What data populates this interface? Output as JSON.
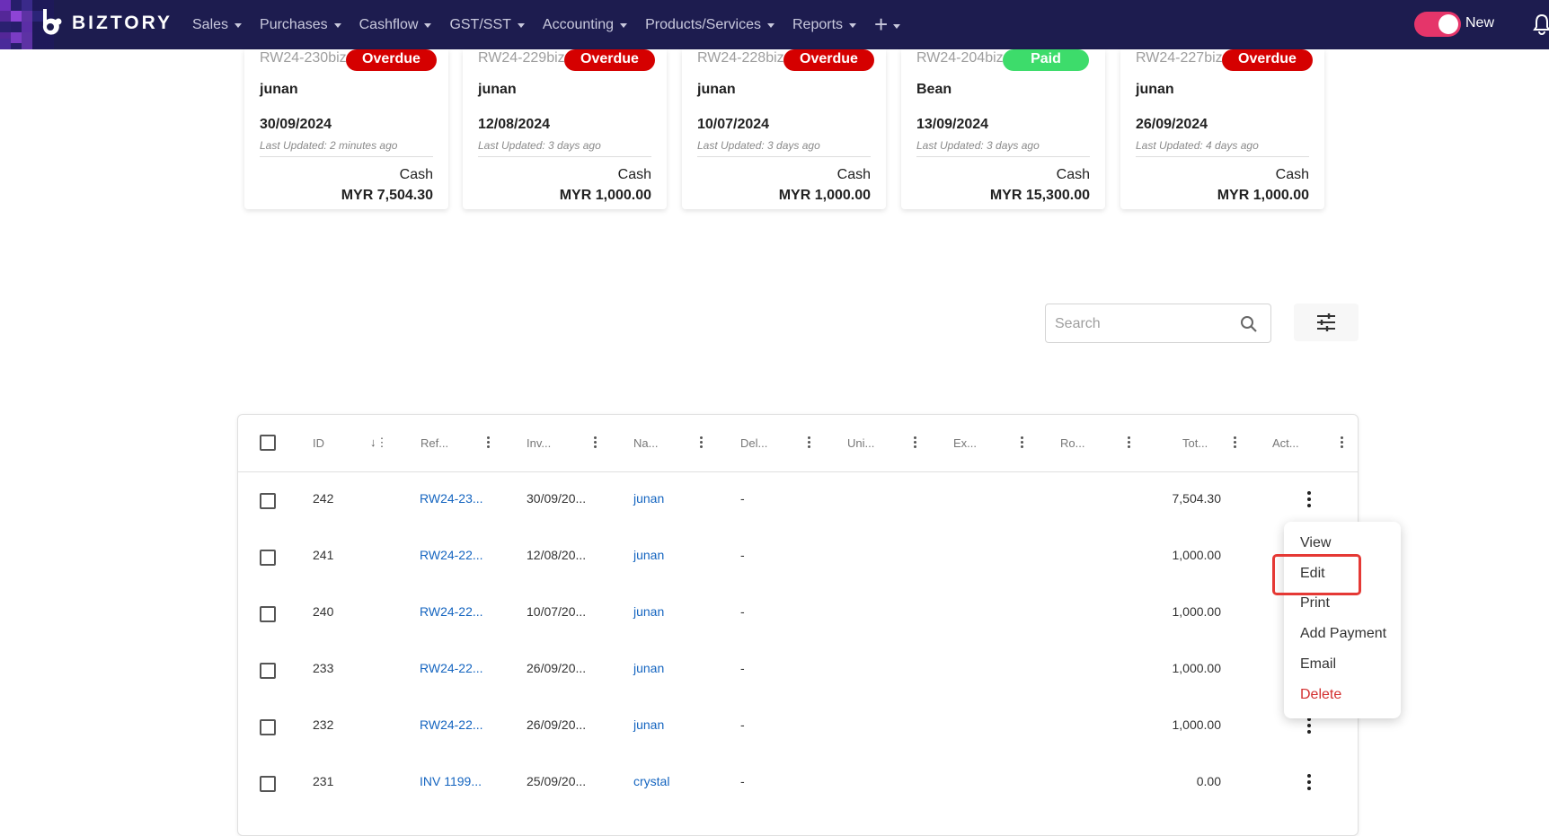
{
  "app": {
    "brand": "BIZTORY",
    "nav": [
      "Sales",
      "Purchases",
      "Cashflow",
      "GST/SST",
      "Accounting",
      "Products/Services",
      "Reports"
    ],
    "new_toggle_label": "New",
    "toggle_on": true,
    "accent": "#e5356a",
    "nav_bg": "#1d1c4f"
  },
  "cards": [
    {
      "ref": "RW24-230biz",
      "status": "Overdue",
      "status_color": "#d50000",
      "name": "junan",
      "date": "30/09/2024",
      "updated": "Last Updated: 2 minutes ago",
      "method": "Cash",
      "amount": "MYR 7,504.30"
    },
    {
      "ref": "RW24-229biz",
      "status": "Overdue",
      "status_color": "#d50000",
      "name": "junan",
      "date": "12/08/2024",
      "updated": "Last Updated: 3 days ago",
      "method": "Cash",
      "amount": "MYR 1,000.00"
    },
    {
      "ref": "RW24-228biz",
      "status": "Overdue",
      "status_color": "#d50000",
      "name": "junan",
      "date": "10/07/2024",
      "updated": "Last Updated: 3 days ago",
      "method": "Cash",
      "amount": "MYR 1,000.00"
    },
    {
      "ref": "RW24-204biz",
      "status": "Paid",
      "status_color": "#3ddc6b",
      "name": "Bean",
      "date": "13/09/2024",
      "updated": "Last Updated: 3 days ago",
      "method": "Cash",
      "amount": "MYR 15,300.00"
    },
    {
      "ref": "RW24-227biz",
      "status": "Overdue",
      "status_color": "#d50000",
      "name": "junan",
      "date": "26/09/2024",
      "updated": "Last Updated: 4 days ago",
      "method": "Cash",
      "amount": "MYR 1,000.00"
    }
  ],
  "search": {
    "placeholder": "Search",
    "value": ""
  },
  "table": {
    "columns": [
      "ID",
      "Ref...",
      "Inv...",
      "Na...",
      "Del...",
      "Uni...",
      "Ex...",
      "Ro...",
      "Tot...",
      "Act..."
    ],
    "rows": [
      {
        "id": "242",
        "ref": "RW24-23...",
        "inv": "30/09/20...",
        "name": "junan",
        "del": "-",
        "total": "7,504.30"
      },
      {
        "id": "241",
        "ref": "RW24-22...",
        "inv": "12/08/20...",
        "name": "junan",
        "del": "-",
        "total": "1,000.00"
      },
      {
        "id": "240",
        "ref": "RW24-22...",
        "inv": "10/07/20...",
        "name": "junan",
        "del": "-",
        "total": "1,000.00"
      },
      {
        "id": "233",
        "ref": "RW24-22...",
        "inv": "26/09/20...",
        "name": "junan",
        "del": "-",
        "total": "1,000.00"
      },
      {
        "id": "232",
        "ref": "RW24-22...",
        "inv": "26/09/20...",
        "name": "junan",
        "del": "-",
        "total": "1,000.00"
      },
      {
        "id": "231",
        "ref": "INV 1199...",
        "inv": "25/09/20...",
        "name": "crystal",
        "del": "-",
        "total": "0.00"
      }
    ]
  },
  "action_menu": {
    "items": [
      "View",
      "Edit",
      "Print",
      "Add Payment",
      "Email",
      "Delete"
    ],
    "highlighted": "Edit",
    "danger_color": "#d32f2f"
  }
}
